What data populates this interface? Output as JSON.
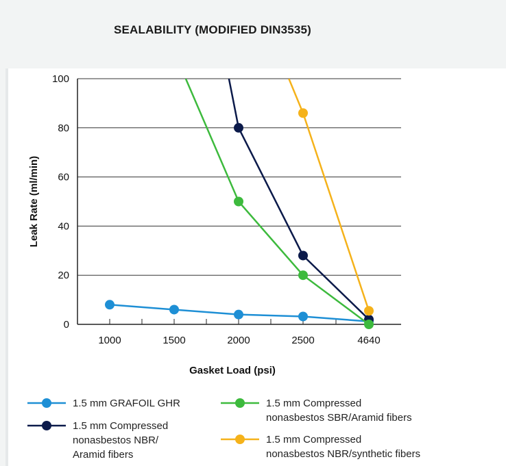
{
  "chart_data": {
    "type": "line",
    "title": "SEALABILITY (MODIFIED DIN3535)",
    "xlabel": "Gasket Load (psi)",
    "ylabel": "Leak Rate (ml/min)",
    "categories": [
      "1000",
      "1500",
      "2000",
      "2500",
      "4640"
    ],
    "ylim": [
      0,
      100
    ],
    "yticks": [
      0,
      20,
      40,
      60,
      80,
      100
    ],
    "grid": "horizontal",
    "legend_position": "bottom",
    "series": [
      {
        "name": "1.5 mm GRAFOIL GHR",
        "legend_lines": [
          "1.5 mm GRAFOIL GHR"
        ],
        "color": "#1e8fd5",
        "points": [
          [
            0,
            8
          ],
          [
            1,
            6
          ],
          [
            2,
            4
          ],
          [
            3,
            3.2
          ],
          [
            4,
            1.2
          ]
        ]
      },
      {
        "name": "1.5 mm Compressed nonasbestos NBR/Aramid fibers",
        "legend_lines": [
          "1.5 mm Compressed",
          "nonasbestos NBR/",
          "Aramid fibers"
        ],
        "color": "#0b1a4a",
        "points": [
          [
            1.85,
            100
          ],
          [
            2,
            80
          ],
          [
            3,
            28
          ],
          [
            4,
            2
          ]
        ]
      },
      {
        "name": "1.5 mm Compressed nonasbestos SBR/Aramid fibers",
        "legend_lines": [
          "1.5 mm Compressed",
          "nonasbestos SBR/Aramid fibers"
        ],
        "color": "#3dba3d",
        "points": [
          [
            1.18,
            100
          ],
          [
            2,
            50
          ],
          [
            3,
            20
          ],
          [
            4,
            0
          ]
        ]
      },
      {
        "name": "1.5 mm Compressed nonasbestos NBR/synthetic fibers",
        "legend_lines": [
          "1.5 mm Compressed",
          "nonasbestos NBR/synthetic fibers"
        ],
        "color": "#f5b21a",
        "points": [
          [
            2.78,
            100
          ],
          [
            3,
            86
          ],
          [
            4,
            5.5
          ]
        ]
      }
    ]
  }
}
